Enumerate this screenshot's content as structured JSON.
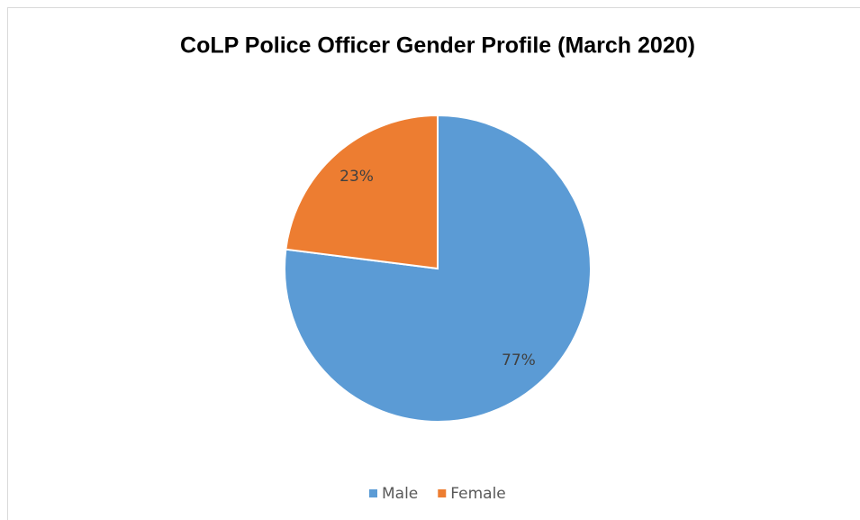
{
  "chart_data": {
    "type": "pie",
    "title": "CoLP Police Officer Gender Profile (March 2020)",
    "categories": [
      "Male",
      "Female"
    ],
    "values": [
      77,
      23
    ],
    "value_labels": [
      "77%",
      "23%"
    ],
    "colors": [
      "#5b9bd5",
      "#ed7d31"
    ],
    "legend": "bottom"
  }
}
